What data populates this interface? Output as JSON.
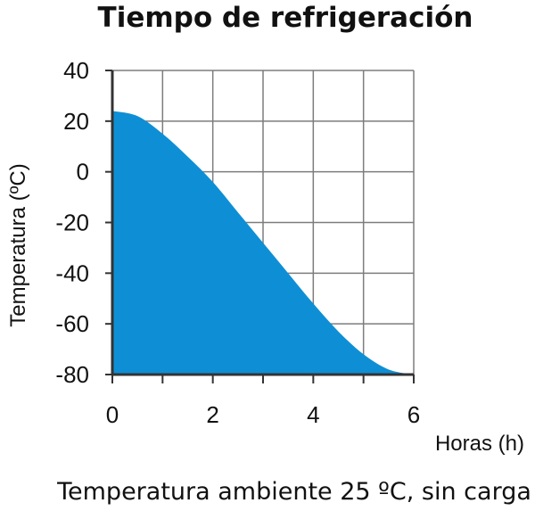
{
  "chart_data": {
    "type": "area",
    "title": "Tiempo de refrigeración",
    "xlabel": "Horas (h)",
    "ylabel": "Temperatura (ºC)",
    "caption": "Temperatura ambiente 25 ºC, sin carga",
    "xlim": [
      0,
      6
    ],
    "ylim": [
      -80,
      40
    ],
    "x_ticks": [
      0,
      2,
      4,
      6
    ],
    "y_ticks": [
      40,
      20,
      0,
      -20,
      -40,
      -60,
      -80
    ],
    "grid": true,
    "fill_color": "#0e8fd5",
    "series": [
      {
        "x": [
          0,
          0.5,
          1,
          1.5,
          2,
          2.5,
          3,
          3.5,
          4,
          4.5,
          5,
          5.5,
          6
        ],
        "y": [
          24,
          22,
          15,
          6,
          -4,
          -16,
          -28,
          -40,
          -52,
          -63,
          -72,
          -78,
          -80
        ]
      }
    ]
  }
}
